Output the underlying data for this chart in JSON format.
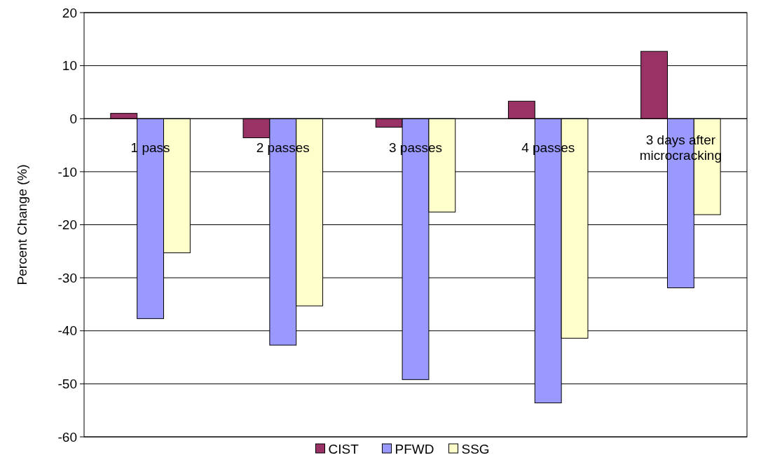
{
  "chart_data": {
    "type": "bar",
    "ylabel": "Percent Change (%)",
    "categories": [
      "1 pass",
      "2 passes",
      "3 passes",
      "4 passes",
      "3 days after microcracking"
    ],
    "series": [
      {
        "name": "CIST",
        "color": "#993366",
        "values": [
          1.0,
          -3.6,
          -1.6,
          3.3,
          12.7
        ]
      },
      {
        "name": "PFWD",
        "color": "#9999ff",
        "values": [
          -37.7,
          -42.7,
          -49.2,
          -53.6,
          -31.9
        ]
      },
      {
        "name": "SSG",
        "color": "#ffffcc",
        "values": [
          -25.3,
          -35.3,
          -17.6,
          -41.4,
          -18.1
        ]
      }
    ],
    "ylim": [
      -60,
      20
    ],
    "yticks": [
      -60,
      -50,
      -40,
      -30,
      -20,
      -10,
      0,
      10,
      20
    ],
    "grid": "y",
    "legend": "bottom"
  }
}
